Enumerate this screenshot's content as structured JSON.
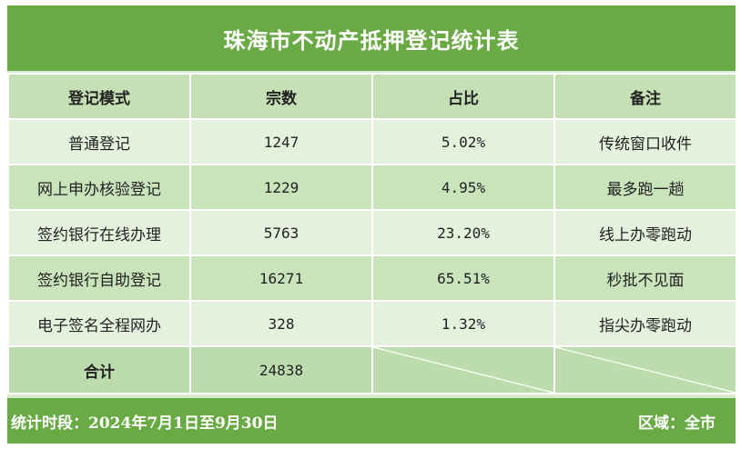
{
  "title": "珠海市不动产抵押登记统计表",
  "columns": [
    "登记模式",
    "宗数",
    "占比",
    "备注"
  ],
  "rows": [
    {
      "mode": "普通登记",
      "count": "1247",
      "ratio": "5.02%",
      "note": "传统窗口收件"
    },
    {
      "mode": "网上申办核验登记",
      "count": "1229",
      "ratio": "4.95%",
      "note": "最多跑一趟"
    },
    {
      "mode": "签约银行在线办理",
      "count": "5763",
      "ratio": "23.20%",
      "note": "线上办零跑动"
    },
    {
      "mode": "签约银行自助登记",
      "count": "16271",
      "ratio": "65.51%",
      "note": "秒批不见面"
    },
    {
      "mode": "电子签名全程网办",
      "count": "328",
      "ratio": "1.32%",
      "note": "指尖办零跑动"
    }
  ],
  "total": {
    "label": "合计",
    "count": "24838"
  },
  "footer": {
    "period": "统计时段：2024年7月1日至9月30日",
    "region": "区域：全市"
  },
  "colors": {
    "header_green": "#6aaa45",
    "column_header": "#c4e0b4",
    "row_light": "#e4f1dd",
    "row_dark": "#c9e3bb"
  }
}
